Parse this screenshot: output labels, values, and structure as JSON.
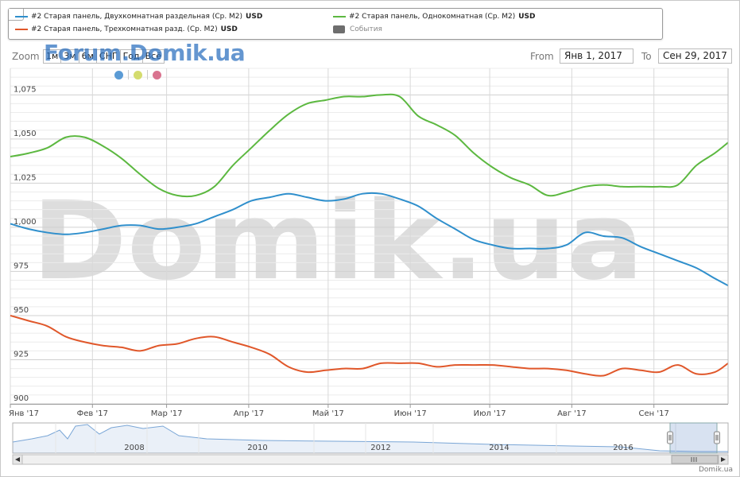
{
  "legend": {
    "items": [
      {
        "label": "#2 Старая панель, Двухкомнатная раздельная (Ср. М2)",
        "unit": "USD",
        "color": "#2f8fcc"
      },
      {
        "label": "#2 Старая панель, Однокомнатная (Ср. М2)",
        "unit": "USD",
        "color": "#5cb840"
      },
      {
        "label": "#2 Старая панель, Трехкомнатная разд. (Ср. М2)",
        "unit": "USD",
        "color": "#e0572a"
      },
      {
        "label": "События",
        "unit": "",
        "color": "#6e6e6e"
      }
    ]
  },
  "zoom": {
    "label": "Zoom",
    "buttons": [
      "1м",
      "3м",
      "6м",
      "СНГ",
      "Год",
      "Всё"
    ]
  },
  "range": {
    "from_label": "From",
    "from_value": "Янв 1, 2017",
    "to_label": "To",
    "to_value": "Сен 29, 2017"
  },
  "watermarks": {
    "forum": "Forum.Domik.ua",
    "main": "Domik.ua"
  },
  "marker_colors": [
    "#5b9bd5",
    "#d4dc6e",
    "#d9738f"
  ],
  "footer": "Domik.ua",
  "chart_data": {
    "type": "line",
    "title": "",
    "xlabel": "",
    "ylabel": "",
    "x": [
      "2017-01-01",
      "2017-01-08",
      "2017-01-15",
      "2017-01-22",
      "2017-01-29",
      "2017-02-05",
      "2017-02-12",
      "2017-02-19",
      "2017-02-26",
      "2017-03-05",
      "2017-03-12",
      "2017-03-19",
      "2017-03-26",
      "2017-04-02",
      "2017-04-09",
      "2017-04-16",
      "2017-04-23",
      "2017-04-30",
      "2017-05-07",
      "2017-05-14",
      "2017-05-21",
      "2017-05-28",
      "2017-06-04",
      "2017-06-11",
      "2017-06-18",
      "2017-06-25",
      "2017-07-02",
      "2017-07-09",
      "2017-07-16",
      "2017-07-23",
      "2017-07-30",
      "2017-08-06",
      "2017-08-13",
      "2017-08-20",
      "2017-08-27",
      "2017-09-03",
      "2017-09-10",
      "2017-09-17",
      "2017-09-24",
      "2017-09-29"
    ],
    "series": [
      {
        "name": "#2 Старая панель, Двухкомнатная раздельная (Ср. М2)",
        "color": "#2f8fcc",
        "values": [
          1002,
          999,
          997,
          996,
          997,
          999,
          1001,
          1001,
          999,
          1000,
          1002,
          1006,
          1010,
          1015,
          1017,
          1019,
          1017,
          1015,
          1016,
          1019,
          1019,
          1016,
          1012,
          1005,
          999,
          993,
          990,
          988,
          988,
          988,
          990,
          997,
          995,
          994,
          989,
          985,
          981,
          977,
          971,
          967
        ]
      },
      {
        "name": "#2 Старая панель, Однокомнатная (Ср. М2)",
        "color": "#5cb840",
        "values": [
          1040,
          1042,
          1045,
          1051,
          1051,
          1046,
          1039,
          1030,
          1022,
          1018,
          1018,
          1023,
          1035,
          1045,
          1055,
          1064,
          1070,
          1072,
          1074,
          1074,
          1075,
          1074,
          1063,
          1058,
          1052,
          1042,
          1034,
          1028,
          1024,
          1018,
          1020,
          1023,
          1024,
          1023,
          1023,
          1023,
          1024,
          1035,
          1042,
          1048
        ]
      },
      {
        "name": "#2 Старая панель, Трехкомнатная разд. (Ср. М2)",
        "color": "#e0572a",
        "values": [
          950,
          947,
          944,
          938,
          935,
          933,
          932,
          930,
          933,
          934,
          937,
          938,
          935,
          932,
          928,
          921,
          918,
          919,
          920,
          920,
          923,
          923,
          923,
          921,
          922,
          922,
          922,
          921,
          920,
          920,
          919,
          917,
          916,
          920,
          919,
          918,
          922,
          917,
          918,
          923
        ]
      }
    ],
    "ylim": [
      900,
      1090
    ],
    "yticks": [
      900,
      925,
      950,
      975,
      1000,
      1025,
      1050,
      1075
    ],
    "ytick_labels": [
      "900",
      "925",
      "950",
      "975",
      "1,000",
      "1,025",
      "1,050",
      "1,075"
    ],
    "xtick_labels": [
      "Янв '17",
      "Фев '17",
      "Мар '17",
      "Апр '17",
      "Май '17",
      "Июн '17",
      "Июл '17",
      "Авг '17",
      "Сен '17"
    ],
    "xtick_dates": [
      "2017-01-01",
      "2017-02-01",
      "2017-03-01",
      "2017-04-01",
      "2017-05-01",
      "2017-06-01",
      "2017-07-01",
      "2017-08-01",
      "2017-09-01"
    ],
    "xlim": [
      "2017-01-01",
      "2017-09-29"
    ],
    "grid": true,
    "navigator": {
      "year_labels": [
        "2008",
        "2010",
        "2012",
        "2014",
        "2016"
      ]
    }
  }
}
